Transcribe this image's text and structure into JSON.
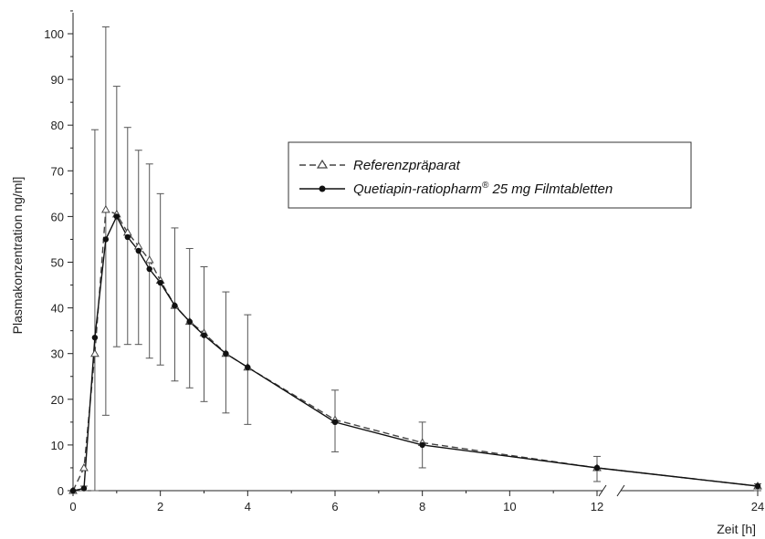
{
  "chart_data": {
    "type": "line",
    "xlabel": "Zeit [h]",
    "ylabel": "Plasmakonzentration ng/ml]",
    "xlim": [
      0,
      24
    ],
    "ylim": [
      0,
      105
    ],
    "x_axis_break": [
      12,
      24
    ],
    "x_ticks": [
      "0",
      "2",
      "4",
      "6",
      "8",
      "10",
      "12",
      "24"
    ],
    "y_ticks": [
      "0",
      "10",
      "20",
      "30",
      "40",
      "50",
      "60",
      "70",
      "80",
      "90",
      "100"
    ],
    "legend": {
      "placement": "top-right",
      "entries": [
        {
          "label": "Referenzpräparat",
          "style": "dashed",
          "marker": "triangle"
        },
        {
          "label": "Quetiapin-ratiopharm",
          "superscript": "®",
          "label_suffix": " 25 mg Filmtabletten",
          "style": "solid",
          "marker": "filled-circle"
        }
      ]
    },
    "series": [
      {
        "name": "Referenzpräparat",
        "x": [
          0,
          0.25,
          0.5,
          0.75,
          1,
          1.25,
          1.5,
          1.75,
          2,
          2.33,
          2.67,
          3,
          3.5,
          4,
          6,
          8,
          12,
          24
        ],
        "y": [
          0,
          5,
          30,
          61.5,
          60.5,
          56.5,
          53.5,
          50.5,
          46,
          40.5,
          37,
          34.5,
          30,
          27,
          15.5,
          10.5,
          5,
          1
        ]
      },
      {
        "name": "Quetiapin-ratiopharm® 25 mg Filmtabletten",
        "x": [
          0,
          0.25,
          0.5,
          0.75,
          1,
          1.25,
          1.5,
          1.75,
          2,
          2.33,
          2.67,
          3,
          3.5,
          4,
          6,
          8,
          12,
          24
        ],
        "y": [
          0,
          0.5,
          33.5,
          55,
          60,
          55.5,
          52.5,
          48.5,
          45.5,
          40.5,
          37,
          34,
          30,
          27,
          15,
          10,
          5,
          1
        ],
        "error_low": [
          0,
          0,
          0,
          16.5,
          31.5,
          32,
          32,
          29,
          27.5,
          24,
          22.5,
          19.5,
          17,
          14.5,
          8.5,
          5,
          2,
          0
        ],
        "error_high": [
          0,
          1,
          79,
          101.5,
          88.5,
          79.5,
          74.5,
          71.5,
          65,
          57.5,
          53,
          49,
          43.5,
          38.5,
          22,
          15,
          7.5,
          1.5
        ]
      }
    ]
  }
}
